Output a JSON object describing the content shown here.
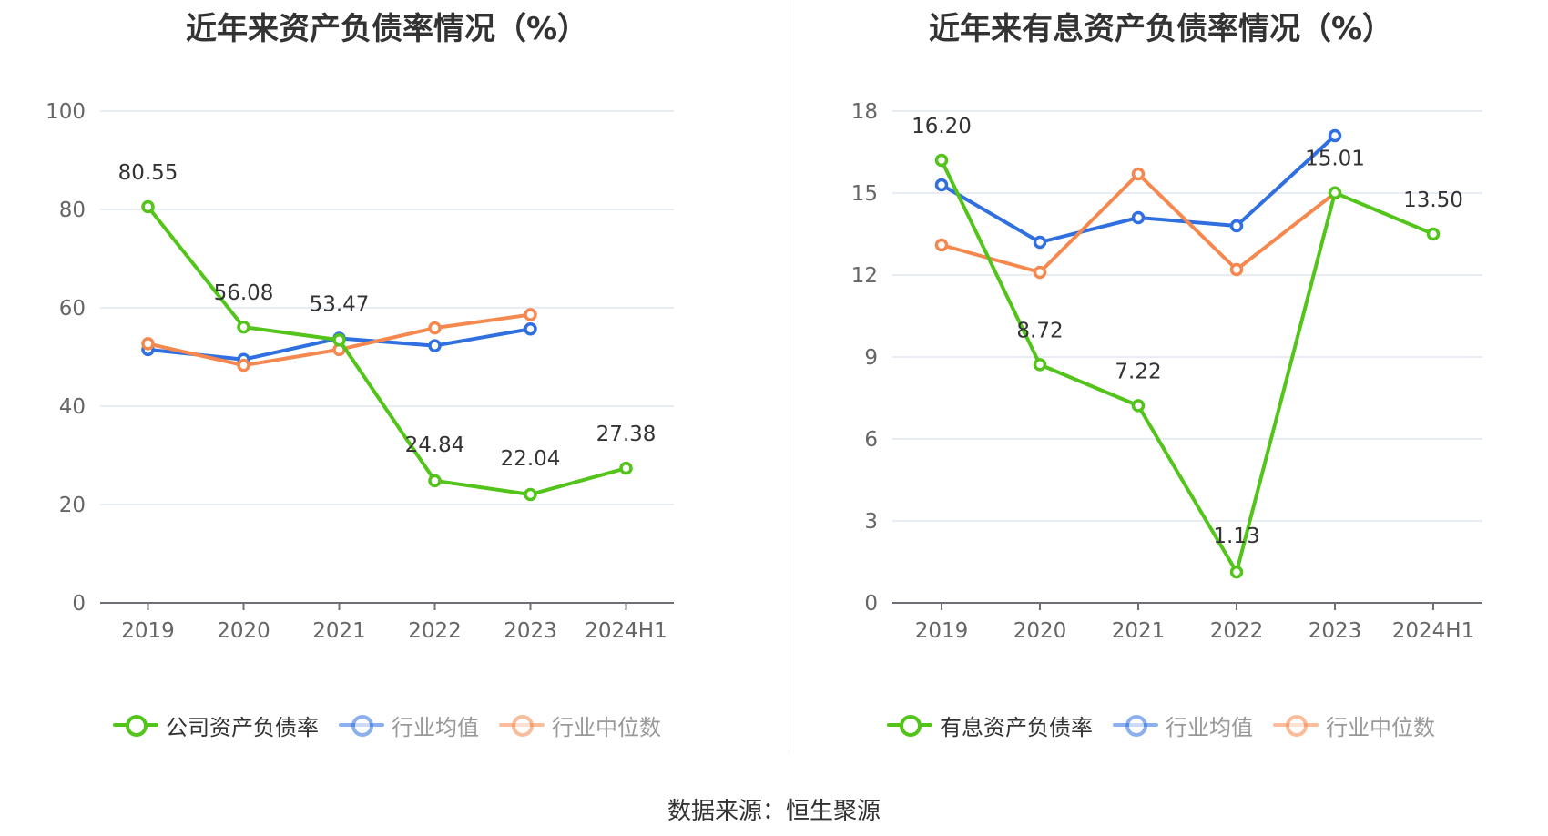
{
  "source_text": "数据来源：恒生聚源",
  "chart_data": [
    {
      "type": "line",
      "title": "近年来资产负债率情况（%）",
      "categories": [
        "2019",
        "2020",
        "2021",
        "2022",
        "2023",
        "2024H1"
      ],
      "y_ticks": [
        0,
        20,
        40,
        60,
        80,
        100
      ],
      "ylim": [
        0,
        100
      ],
      "grid": true,
      "legend_position": "bottom",
      "series": [
        {
          "name": "公司资产负债率",
          "color": "#52c41a",
          "values": [
            80.55,
            56.08,
            53.47,
            24.84,
            22.04,
            27.38
          ],
          "labels": [
            "80.55",
            "56.08",
            "53.47",
            "24.84",
            "22.04",
            "27.38"
          ],
          "show_labels": true
        },
        {
          "name": "行业均值",
          "color": "#2f6fdf",
          "values": [
            51.5,
            49.5,
            53.8,
            52.3,
            55.7,
            null
          ],
          "show_labels": false
        },
        {
          "name": "行业中位数",
          "color": "#f5884f",
          "values": [
            52.7,
            48.3,
            51.5,
            55.9,
            58.6,
            null
          ],
          "show_labels": false
        }
      ]
    },
    {
      "type": "line",
      "title": "近年来有息资产负债率情况（%）",
      "categories": [
        "2019",
        "2020",
        "2021",
        "2022",
        "2023",
        "2024H1"
      ],
      "y_ticks": [
        0,
        3,
        6,
        9,
        12,
        15,
        18
      ],
      "ylim": [
        0,
        18
      ],
      "grid": true,
      "legend_position": "bottom",
      "series": [
        {
          "name": "有息资产负债率",
          "color": "#52c41a",
          "values": [
            16.2,
            8.72,
            7.22,
            1.13,
            15.01,
            13.5
          ],
          "labels": [
            "16.20",
            "8.72",
            "7.22",
            "1.13",
            "15.01",
            "13.50"
          ],
          "show_labels": true
        },
        {
          "name": "行业均值",
          "color": "#2f6fdf",
          "values": [
            15.3,
            13.2,
            14.1,
            13.8,
            17.1,
            null
          ],
          "show_labels": false
        },
        {
          "name": "行业中位数",
          "color": "#f5884f",
          "values": [
            13.1,
            12.1,
            15.7,
            12.2,
            15.0,
            null
          ],
          "show_labels": false
        }
      ]
    }
  ]
}
